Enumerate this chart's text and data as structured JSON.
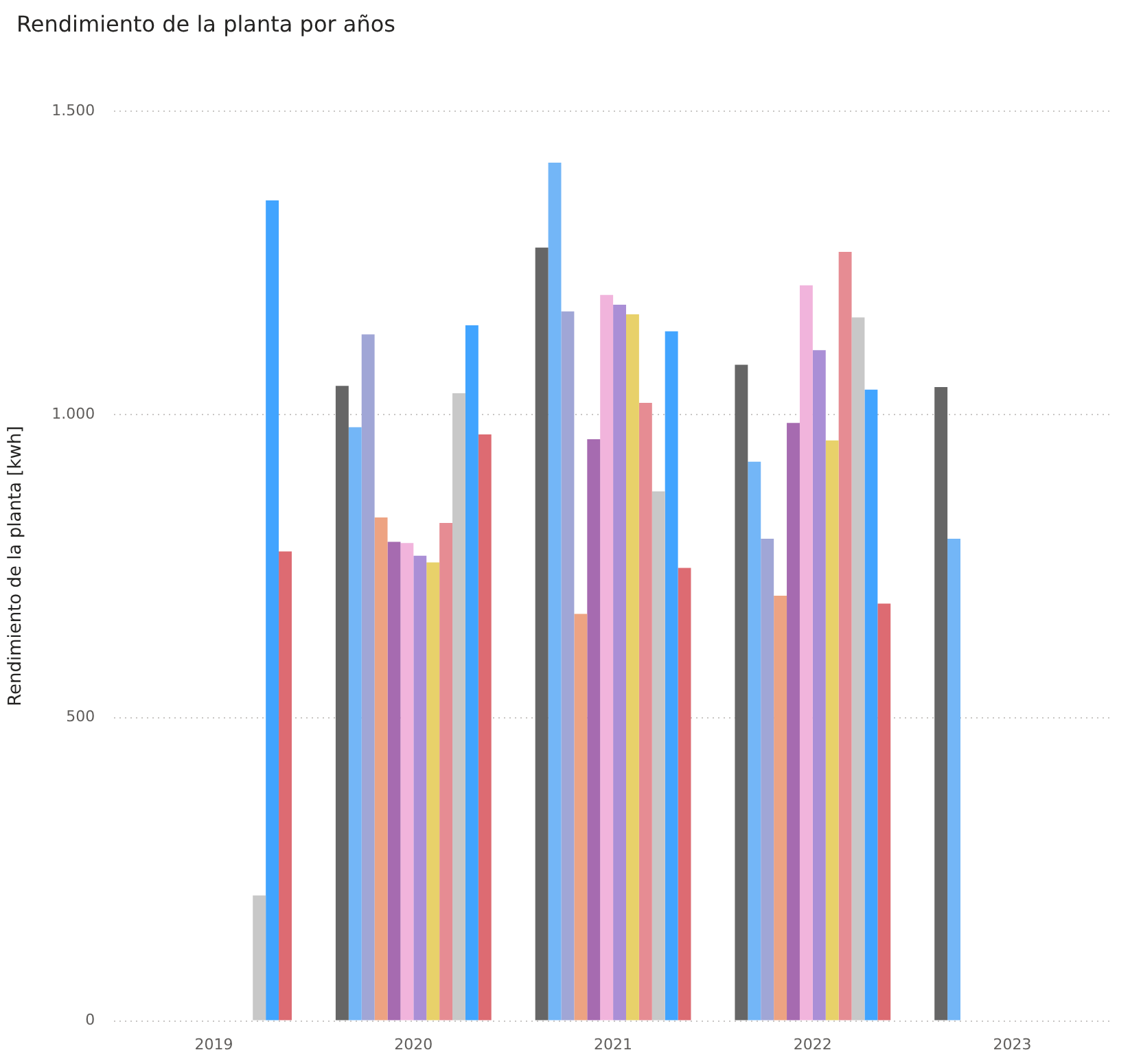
{
  "chart_data": {
    "type": "bar",
    "title": "Rendimiento de la planta por años",
    "ylabel": "Rendimiento de la planta [kwh]",
    "categories": [
      "2019",
      "2020",
      "2021",
      "2022",
      "2023"
    ],
    "series": [
      {
        "color": "#666666",
        "values": [
          null,
          1047,
          1275,
          1082,
          1045
        ]
      },
      {
        "color": "#73b6f7",
        "values": [
          null,
          979,
          1415,
          922,
          795
        ]
      },
      {
        "color": "#a0a6d6",
        "values": [
          null,
          1132,
          1170,
          795,
          null
        ]
      },
      {
        "color": "#eda382",
        "values": [
          null,
          830,
          671,
          701,
          null
        ]
      },
      {
        "color": "#a66bb0",
        "values": [
          null,
          790,
          959,
          986,
          null
        ]
      },
      {
        "color": "#f1b4dc",
        "values": [
          null,
          788,
          1197,
          1213,
          null
        ]
      },
      {
        "color": "#aa8fd6",
        "values": [
          null,
          767,
          1181,
          1106,
          null
        ]
      },
      {
        "color": "#e8d16a",
        "values": [
          null,
          756,
          1165,
          957,
          null
        ]
      },
      {
        "color": "#e68c93",
        "values": [
          null,
          821,
          1019,
          1268,
          null
        ]
      },
      {
        "color": "#c8c8c8",
        "values": [
          207,
          1035,
          873,
          1160,
          null
        ]
      },
      {
        "color": "#41a4ff",
        "values": [
          1353,
          1147,
          1137,
          1041,
          null
        ]
      },
      {
        "color": "#dd6b72",
        "values": [
          774,
          967,
          747,
          688,
          null
        ]
      }
    ],
    "ylim": [
      0,
      1500
    ],
    "yticks": [
      0,
      500,
      {
        "value": 1000,
        "label": "1.000"
      },
      {
        "value": 1500,
        "label": "1.500"
      }
    ],
    "grid": "y",
    "legend": false
  }
}
